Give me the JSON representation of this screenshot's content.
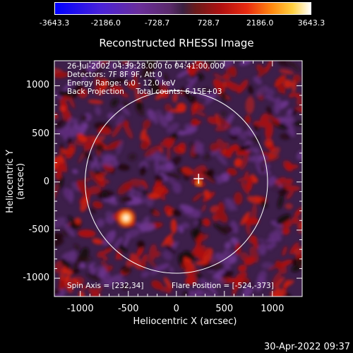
{
  "chart_data": {
    "type": "heatmap",
    "title": "Reconstructed RHESSI Image",
    "xlabel": "Heliocentric X (arcsec)",
    "ylabel": "Heliocentric Y (arcsec)",
    "xlim": [
      -1270,
      1310
    ],
    "ylim": [
      -1190,
      1260
    ],
    "x_ticks": [
      "-1000",
      "-500",
      "0",
      "500",
      "1000"
    ],
    "x_tick_values": [
      -1000,
      -500,
      0,
      500,
      1000
    ],
    "y_ticks": [
      "1000",
      "500",
      "0",
      "-500",
      "-1000"
    ],
    "y_tick_values": [
      1000,
      500,
      0,
      -500,
      -1000
    ],
    "colorbar": {
      "ticks": [
        "-3643.3",
        "-2186.0",
        "-728.7",
        "728.7",
        "2186.0",
        "3643.3"
      ],
      "tick_values": [
        -3643.3,
        -2186.0,
        -728.7,
        728.7,
        2186.0,
        3643.3
      ],
      "range": [
        -3643.3,
        3643.3
      ],
      "colors": [
        "#0000ff",
        "#6a2e9a",
        "#3a2040",
        "#b01010",
        "#ff8a10",
        "#ffffff"
      ]
    },
    "info_lines": [
      "26-Jul-2002 04:39:28.000 to 04:41:00.000",
      "Detectors: 7F 8F 9F, Att 0",
      "Energy Range: 6.0 - 12.0 keV",
      "Back Projection     Total counts: 6.15E+03"
    ],
    "spin_axis_label": "Spin Axis = [232,34]",
    "flare_position_label": "Flare Position = [-524,-373]",
    "solar_disk_radius": 950,
    "spin_axis": [
      232,
      34
    ],
    "flare_position": [
      -524,
      -373
    ]
  },
  "date_stamp": "30-Apr-2022 09:37"
}
